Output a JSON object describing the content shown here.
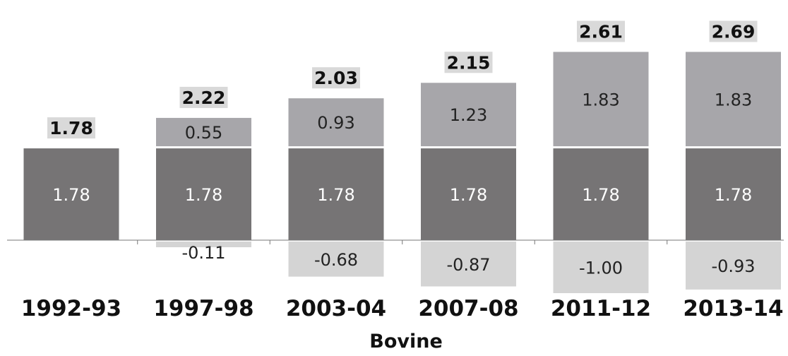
{
  "chart_data": {
    "type": "bar",
    "stacked": true,
    "xlabel": "Bovine",
    "categories": [
      "1992-93",
      "1997-98",
      "2003-04",
      "2007-08",
      "2011-12",
      "2013-14"
    ],
    "series": [
      {
        "values": [
          1.78,
          1.78,
          1.78,
          1.78,
          1.78,
          1.78
        ],
        "labels": [
          "1.78",
          "1.78",
          "1.78",
          "1.78",
          "1.78",
          "1.78"
        ],
        "color": "#767475"
      },
      {
        "values": [
          0,
          0.55,
          0.93,
          1.23,
          1.83,
          1.83
        ],
        "labels": [
          "",
          "0.55",
          "0.93",
          "1.23",
          "1.83",
          "1.83"
        ],
        "color": "#a7a6aa"
      },
      {
        "values": [
          0,
          -0.11,
          -0.68,
          -0.87,
          -1.0,
          -0.93
        ],
        "labels": [
          "",
          "-0.11",
          "-0.68",
          "-0.87",
          "-1.00",
          "-0.93"
        ],
        "color": "#d4d4d4"
      }
    ],
    "totals": [
      "1.78",
      "2.22",
      "2.03",
      "2.15",
      "2.61",
      "2.69"
    ],
    "total_box_color": "#d9d9d9",
    "grid": false,
    "legend": "none"
  }
}
